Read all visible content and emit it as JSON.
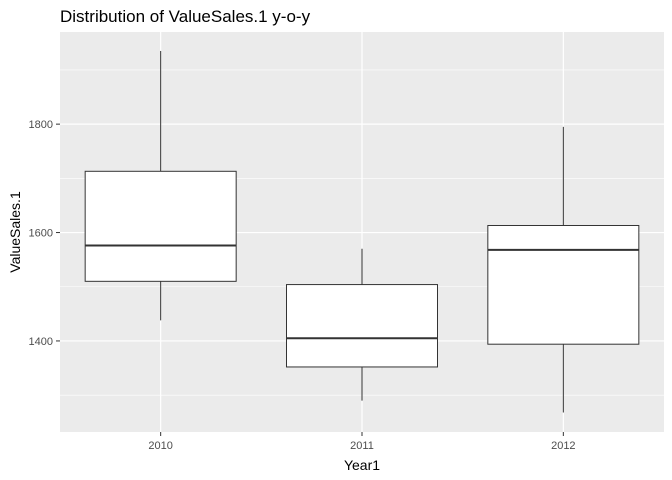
{
  "chart_data": {
    "type": "boxplot",
    "title": "Distribution of ValueSales.1 y-o-y",
    "xlabel": "Year1",
    "ylabel": "ValueSales.1",
    "categories": [
      "2010",
      "2011",
      "2012"
    ],
    "boxes": [
      {
        "category": "2010",
        "min": 1438,
        "q1": 1510,
        "median": 1576,
        "q3": 1713,
        "max": 1935
      },
      {
        "category": "2011",
        "min": 1290,
        "q1": 1352,
        "median": 1405,
        "q3": 1504,
        "max": 1570
      },
      {
        "category": "2012",
        "min": 1268,
        "q1": 1394,
        "median": 1568,
        "q3": 1613,
        "max": 1795
      }
    ],
    "yticks": [
      1400,
      1600,
      1800
    ],
    "ytick_labels": [
      "1400",
      "1600",
      "1800"
    ],
    "ylim": [
      1232,
      1970
    ],
    "grid": true,
    "colors": {
      "panel": "#ebebeb",
      "grid": "#ffffff",
      "box_fill": "#ffffff",
      "box_line": "#333333"
    }
  }
}
